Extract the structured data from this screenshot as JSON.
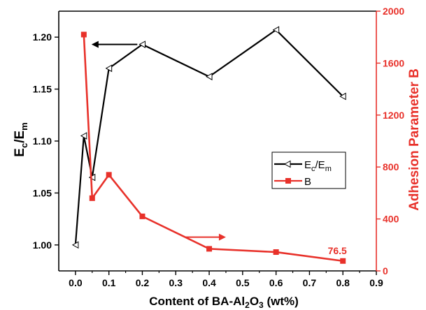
{
  "colors": {
    "left_series": "#000000",
    "right_series": "#e8312a",
    "axis": "#000000"
  },
  "chart_data": {
    "type": "line",
    "x_axis": {
      "label_main": "Content of BA-Al",
      "label_sub": "2",
      "label_main2": "O",
      "label_sub2": "3",
      "label_tail": " (wt%)",
      "range": [
        -0.05,
        0.9
      ],
      "ticks": [
        0.0,
        0.1,
        0.2,
        0.3,
        0.4,
        0.5,
        0.6,
        0.7,
        0.8,
        0.9
      ],
      "tick_labels": [
        "0.0",
        "0.1",
        "0.2",
        "0.3",
        "0.4",
        "0.5",
        "0.6",
        "0.7",
        "0.8",
        "0.9"
      ]
    },
    "y_left": {
      "label_main": "E",
      "label_sub": "c",
      "label_mid": "/E",
      "label_sub2": "m",
      "range": [
        0.975,
        1.225
      ],
      "ticks": [
        1.0,
        1.05,
        1.1,
        1.15,
        1.2
      ],
      "tick_labels": [
        "1.00",
        "1.05",
        "1.10",
        "1.15",
        "1.20"
      ]
    },
    "y_right": {
      "label": "Adhesion Parameter B",
      "range": [
        0,
        2000
      ],
      "ticks": [
        0,
        400,
        800,
        1200,
        1600,
        2000
      ],
      "tick_labels": [
        "0",
        "400",
        "800",
        "1200",
        "1600",
        "2000"
      ]
    },
    "series": [
      {
        "name_main": "E",
        "name_sub": "c",
        "name_mid": "/E",
        "name_sub2": "m",
        "axis": "left",
        "marker": "triangle-left",
        "x": [
          0.0,
          0.025,
          0.05,
          0.1,
          0.2,
          0.4,
          0.6,
          0.8
        ],
        "y": [
          1.0,
          1.105,
          1.065,
          1.17,
          1.193,
          1.162,
          1.207,
          1.143
        ]
      },
      {
        "name": "B",
        "axis": "right",
        "marker": "square",
        "x": [
          0.025,
          0.05,
          0.1,
          0.2,
          0.4,
          0.6,
          0.8
        ],
        "y": [
          1820,
          560,
          740,
          420,
          170,
          145,
          76.5
        ]
      }
    ],
    "annotations": [
      {
        "text": "76.5",
        "x": 0.8,
        "y_right": 76.5
      }
    ],
    "arrows": [
      {
        "direction": "left",
        "series_axis": "left",
        "x_from": 0.185,
        "x_to": 0.048,
        "y": 1.193
      },
      {
        "direction": "right",
        "series_axis": "right",
        "x_from": 0.33,
        "x_to": 0.45,
        "y": 260
      }
    ],
    "legend": {
      "position": "right-middle"
    },
    "grid": false
  }
}
